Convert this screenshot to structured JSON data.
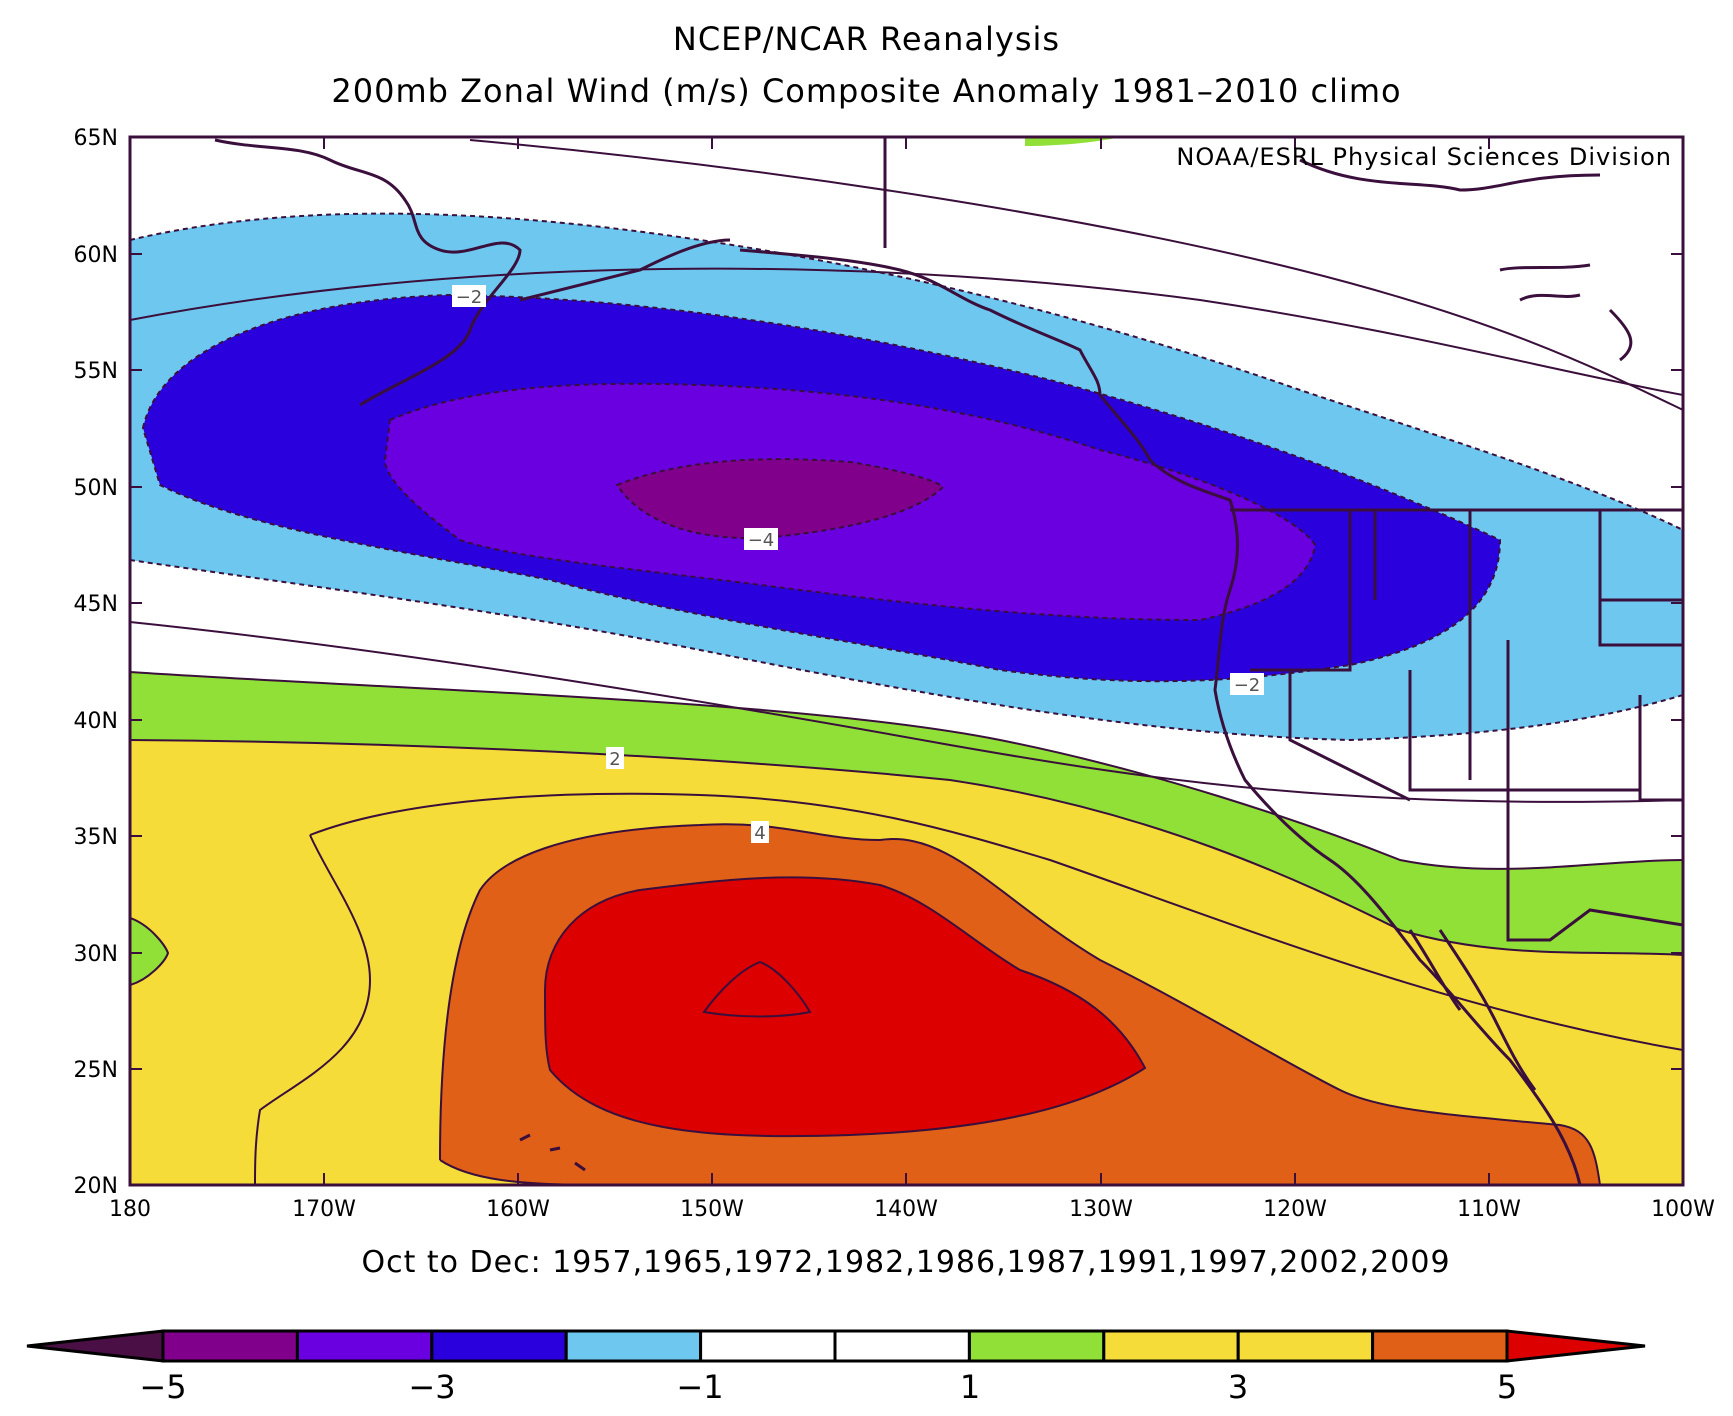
{
  "title": "NCEP/NCAR Reanalysis",
  "subtitle": "200mb Zonal Wind (m/s) Composite Anomaly 1981–2010 climo",
  "credit": "NOAA/ESRL Physical Sciences Division",
  "caption": "Oct to Dec: 1957,1965,1972,1982,1986,1987,1991,1997,2002,2009",
  "map": {
    "lat_range": [
      20,
      65
    ],
    "lon_range": [
      180,
      100
    ],
    "lat_ticks": [
      "65N",
      "60N",
      "55N",
      "50N",
      "45N",
      "40N",
      "35N",
      "30N",
      "25N",
      "20N"
    ],
    "lon_ticks": [
      "180",
      "170W",
      "160W",
      "150W",
      "140W",
      "130W",
      "120W",
      "110W",
      "100W"
    ],
    "contour_labels": [
      "−2",
      "−4",
      "−2",
      "2",
      "4"
    ]
  },
  "colorbar": {
    "tick_labels": [
      "−5",
      "−3",
      "−1",
      "1",
      "3",
      "5"
    ],
    "colors": [
      "#4a0f44",
      "#80008c",
      "#6a00e0",
      "#2a00dc",
      "#6ec7ef",
      "#ffffff",
      "#ffffff",
      "#90e038",
      "#f5dc38",
      "#f5dc38",
      "#e06018",
      "#dd0000"
    ]
  },
  "fill_colors": {
    "neg5": "#80008c",
    "neg4": "#6a00e0",
    "neg3": "#2a00dc",
    "neg2": "#6ec7ef",
    "neutral": "#ffffff",
    "pos1": "#90e038",
    "pos2": "#f5dc38",
    "pos4": "#e06018",
    "pos5": "#dd0000",
    "line": "#3a0f3c"
  }
}
